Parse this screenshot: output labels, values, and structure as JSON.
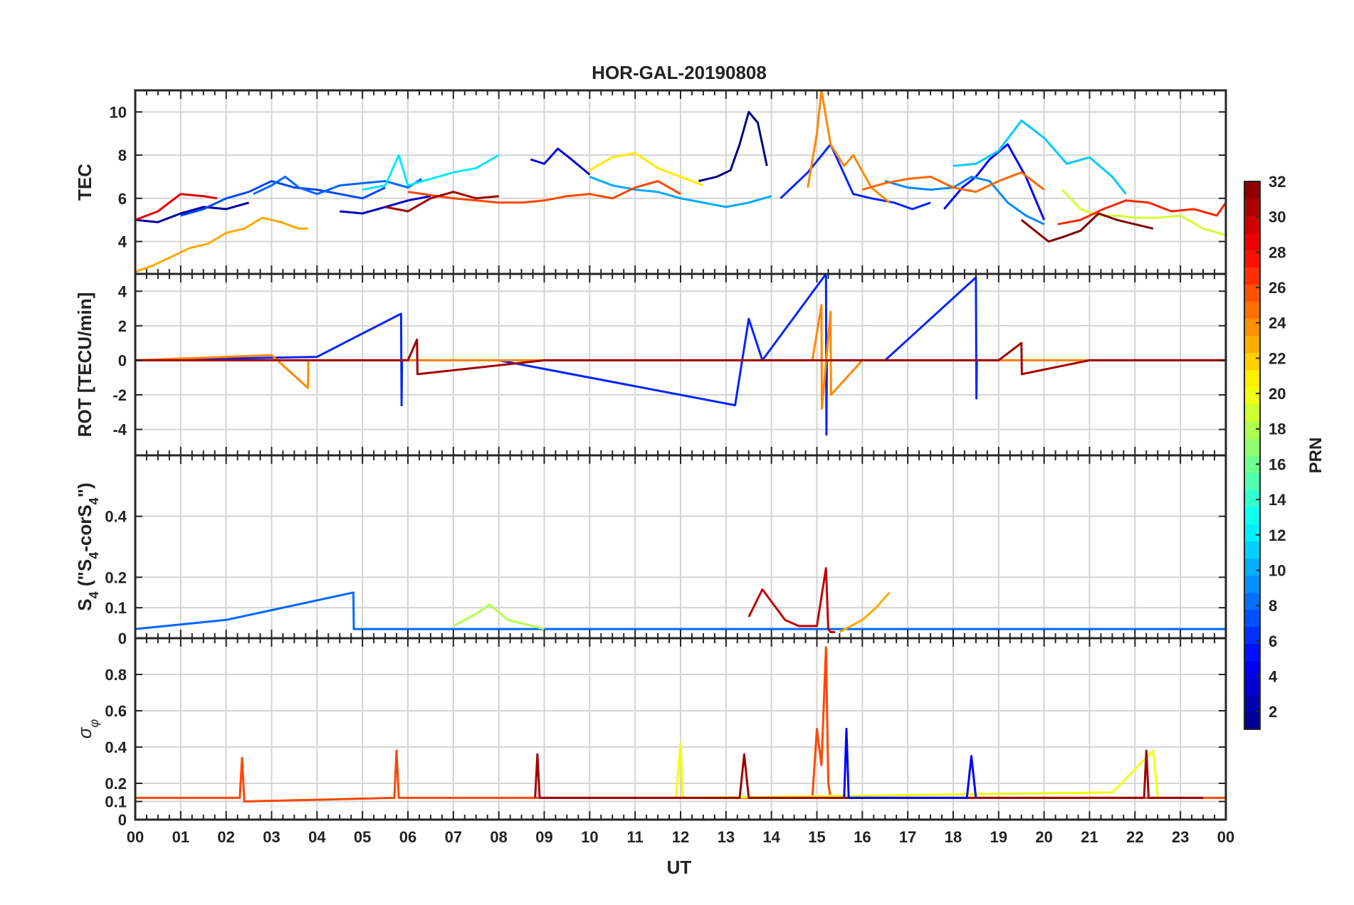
{
  "figure": {
    "title": "HOR-GAL-20190808",
    "xlabel": "UT",
    "x_ticks": [
      "00",
      "01",
      "02",
      "03",
      "04",
      "05",
      "06",
      "07",
      "08",
      "09",
      "10",
      "11",
      "12",
      "13",
      "14",
      "15",
      "16",
      "17",
      "18",
      "19",
      "20",
      "21",
      "22",
      "23",
      "00"
    ]
  },
  "colorbar": {
    "label": "PRN",
    "range": [
      1,
      32
    ],
    "colormap": "jet",
    "ticks": [
      "2",
      "4",
      "6",
      "8",
      "10",
      "12",
      "14",
      "16",
      "18",
      "20",
      "22",
      "24",
      "26",
      "28",
      "30",
      "32"
    ]
  },
  "panels": [
    {
      "id": "tec",
      "ylabel": "TEC",
      "ylim": [
        2.5,
        11
      ],
      "yticks": [
        4,
        6,
        8,
        10
      ],
      "ytick_labels": [
        "4",
        "6",
        "8",
        "10"
      ]
    },
    {
      "id": "rot",
      "ylabel": "ROT [TECU/min]",
      "ylim": [
        -5.5,
        5
      ],
      "yticks": [
        -4,
        -2,
        0,
        2,
        4
      ],
      "ytick_labels": [
        "-4",
        "-2",
        "0",
        "2",
        "4"
      ]
    },
    {
      "id": "s4",
      "ylabel_parts": [
        "S",
        "4",
        " (\"S",
        "4",
        "-corS",
        "4",
        "\")"
      ],
      "ylim": [
        0,
        0.6
      ],
      "yticks": [
        0,
        0.1,
        0.2,
        0.4
      ],
      "ytick_labels": [
        "0",
        "0.1",
        "0.2",
        "0.4"
      ]
    },
    {
      "id": "sigma",
      "ylabel_parts": [
        "σ",
        "φ"
      ],
      "ylim": [
        0,
        1
      ],
      "yticks": [
        0,
        0.1,
        0.2,
        0.4,
        0.6,
        0.8
      ],
      "ytick_labels": [
        "0",
        "0.1",
        "0.2",
        "0.4",
        "0.6",
        "0.8"
      ]
    }
  ],
  "chart_data": [
    {
      "type": "line",
      "title": "HOR-GAL-20190808",
      "panel": "tec",
      "xlabel": "UT",
      "ylabel": "TEC",
      "xlim": [
        0,
        24
      ],
      "ylim": [
        2.5,
        11
      ],
      "series": [
        {
          "prn": 1,
          "x": [
            12.4,
            12.8,
            13.1,
            13.3,
            13.5,
            13.7,
            13.9
          ],
          "y": [
            6.8,
            7.0,
            7.3,
            8.5,
            10.0,
            9.5,
            7.5
          ]
        },
        {
          "prn": 2,
          "x": [
            0.0,
            0.5,
            1.0,
            1.5,
            2.0,
            2.5
          ],
          "y": [
            5.0,
            4.9,
            5.3,
            5.6,
            5.5,
            5.8
          ]
        },
        {
          "prn": 3,
          "x": [
            4.5,
            5.0,
            5.5,
            6.0,
            6.5
          ],
          "y": [
            5.4,
            5.3,
            5.6,
            5.9,
            6.1
          ]
        },
        {
          "prn": 4,
          "x": [
            8.7,
            9.0,
            9.3,
            9.6,
            10.0
          ],
          "y": [
            7.8,
            7.6,
            8.3,
            7.8,
            7.1
          ]
        },
        {
          "prn": 5,
          "x": [
            17.8,
            18.2,
            18.5,
            18.8,
            19.2,
            19.6,
            20.0
          ],
          "y": [
            5.5,
            6.5,
            7.0,
            7.8,
            8.5,
            7.0,
            5.0
          ]
        },
        {
          "prn": 6,
          "x": [
            14.2,
            14.8,
            15.3,
            15.8,
            16.2,
            16.7,
            17.1,
            17.5
          ],
          "y": [
            6.0,
            7.2,
            8.5,
            6.2,
            6.0,
            5.8,
            5.5,
            5.8
          ]
        },
        {
          "prn": 7,
          "x": [
            1.0,
            1.5,
            2.0,
            2.5,
            3.0,
            3.5,
            4.0,
            4.5,
            5.0,
            5.5
          ],
          "y": [
            5.2,
            5.5,
            6.0,
            6.3,
            6.8,
            6.5,
            6.4,
            6.2,
            6.0,
            6.5
          ]
        },
        {
          "prn": 8,
          "x": [
            2.6,
            3.0,
            3.3,
            3.6,
            4.0,
            4.5,
            5.0,
            5.5,
            6.0,
            6.3
          ],
          "y": [
            6.2,
            6.6,
            7.0,
            6.5,
            6.2,
            6.6,
            6.7,
            6.8,
            6.5,
            6.9
          ]
        },
        {
          "prn": 9,
          "x": [
            16.5,
            17.0,
            17.5,
            18.0,
            18.4,
            18.8,
            19.2,
            19.6,
            20.0
          ],
          "y": [
            6.8,
            6.5,
            6.4,
            6.5,
            7.0,
            6.8,
            5.8,
            5.2,
            4.8
          ]
        },
        {
          "prn": 10,
          "x": [
            10.0,
            10.5,
            11.0,
            11.5,
            12.0,
            12.5,
            13.0,
            13.5,
            14.0
          ],
          "y": [
            7.0,
            6.6,
            6.4,
            6.3,
            6.0,
            5.8,
            5.6,
            5.8,
            6.1
          ]
        },
        {
          "prn": 11,
          "x": [
            18.0,
            18.5,
            19.0,
            19.5,
            20.0,
            20.5,
            21.0,
            21.5,
            21.8
          ],
          "y": [
            7.5,
            7.6,
            8.2,
            9.6,
            8.8,
            7.6,
            7.9,
            7.0,
            6.2
          ]
        },
        {
          "prn": 12,
          "x": [
            5.0,
            5.5,
            5.8,
            6.0,
            6.5,
            7.0,
            7.5,
            8.0
          ],
          "y": [
            6.4,
            6.6,
            8.0,
            6.6,
            6.9,
            7.2,
            7.4,
            8.0
          ]
        },
        {
          "prn": 19,
          "x": [
            20.4,
            20.8,
            21.2,
            21.6,
            22.0,
            22.5,
            23.0,
            23.5,
            24.0
          ],
          "y": [
            6.4,
            5.5,
            5.2,
            5.2,
            5.1,
            5.1,
            5.2,
            4.6,
            4.3
          ]
        },
        {
          "prn": 21,
          "x": [
            10.0,
            10.5,
            11.0,
            11.5,
            12.0,
            12.5
          ],
          "y": [
            7.3,
            7.9,
            8.1,
            7.4,
            7.0,
            6.6
          ]
        },
        {
          "prn": 23,
          "x": [
            0.0,
            0.4,
            0.8,
            1.2,
            1.6,
            2.0,
            2.4,
            2.8,
            3.2,
            3.6,
            3.8
          ],
          "y": [
            2.6,
            2.9,
            3.3,
            3.7,
            3.9,
            4.4,
            4.6,
            5.1,
            4.9,
            4.6,
            4.6
          ]
        },
        {
          "prn": 24,
          "x": [
            14.8,
            15.0,
            15.1,
            15.3,
            15.6,
            15.8,
            16.2,
            16.6
          ],
          "y": [
            6.5,
            9.0,
            11.0,
            8.5,
            7.5,
            8.0,
            6.5,
            5.8
          ]
        },
        {
          "prn": 25,
          "x": [
            16.0,
            16.5,
            17.0,
            17.5,
            18.0,
            18.5,
            19.0,
            19.5,
            20.0
          ],
          "y": [
            6.4,
            6.7,
            6.9,
            7.0,
            6.5,
            6.3,
            6.8,
            7.2,
            6.4
          ]
        },
        {
          "prn": 26,
          "x": [
            6.0,
            7.0,
            7.5,
            8.0,
            8.5,
            9.0,
            9.5,
            10.0,
            10.5,
            11.0,
            11.5,
            12.0
          ],
          "y": [
            6.3,
            6.0,
            5.9,
            5.8,
            5.8,
            5.9,
            6.1,
            6.2,
            6.0,
            6.5,
            6.8,
            6.2
          ]
        },
        {
          "prn": 27,
          "x": [
            20.3,
            20.8,
            21.3,
            21.8,
            22.3,
            22.8,
            23.3,
            23.8,
            24.0
          ],
          "y": [
            4.8,
            5.0,
            5.5,
            5.9,
            5.8,
            5.4,
            5.5,
            5.2,
            5.8
          ]
        },
        {
          "prn": 29,
          "x": [
            0.0,
            0.5,
            1.0,
            1.5,
            1.8
          ],
          "y": [
            5.0,
            5.4,
            6.2,
            6.1,
            6.0
          ]
        },
        {
          "prn": 31,
          "x": [
            5.5,
            6.0,
            6.5,
            7.0,
            7.5,
            8.0
          ],
          "y": [
            5.6,
            5.4,
            6.0,
            6.3,
            6.0,
            6.1
          ]
        },
        {
          "prn": 32,
          "x": [
            19.5,
            19.8,
            20.1,
            20.4,
            20.8,
            21.2,
            21.6,
            22.0,
            22.4
          ],
          "y": [
            5.0,
            4.5,
            4.0,
            4.2,
            4.5,
            5.3,
            5.0,
            4.8,
            4.6
          ]
        }
      ]
    },
    {
      "type": "line",
      "panel": "rot",
      "xlabel": "UT",
      "ylabel": "ROT [TECU/min]",
      "xlim": [
        0,
        24
      ],
      "ylim": [
        -5.5,
        5
      ],
      "series": [
        {
          "prn": 6,
          "x": [
            0,
            4,
            5.85,
            5.86,
            5.87,
            8,
            13.2,
            13.5,
            13.8,
            15.2,
            15.21,
            15.22,
            16.5,
            18.5,
            18.51,
            18.52,
            19.5,
            24
          ],
          "y": [
            0,
            0.2,
            2.7,
            -2.6,
            0,
            0,
            -2.6,
            2.4,
            0,
            5.0,
            -4.3,
            0,
            0,
            4.8,
            -2.2,
            0,
            0,
            0
          ]
        },
        {
          "prn": 24,
          "x": [
            0,
            3,
            3.8,
            3.81,
            6,
            14.9,
            15.1,
            15.11,
            15.3,
            15.31,
            16,
            24
          ],
          "y": [
            0,
            0.3,
            -1.6,
            0,
            0,
            0,
            3.2,
            -2.8,
            2.8,
            -2.0,
            0,
            0
          ]
        },
        {
          "prn": 31,
          "x": [
            0,
            6,
            6.2,
            6.21,
            9,
            17,
            19,
            19.5,
            19.51,
            21,
            24
          ],
          "y": [
            0,
            0,
            1.2,
            -0.8,
            0,
            0,
            0,
            1.0,
            -0.8,
            0,
            0
          ]
        }
      ]
    },
    {
      "type": "line",
      "panel": "s4",
      "xlabel": "UT",
      "ylabel": "S4 (\"S4-corS4\")",
      "xlim": [
        0,
        24
      ],
      "ylim": [
        0,
        0.6
      ],
      "series": [
        {
          "prn": 8,
          "x": [
            0,
            2,
            4.8,
            4.81,
            4.82,
            8,
            24
          ],
          "y": [
            0.03,
            0.06,
            0.15,
            0.03,
            0.03,
            0.03,
            0.03
          ]
        },
        {
          "prn": 18,
          "x": [
            7,
            7.5,
            7.8,
            8.2,
            9
          ],
          "y": [
            0.04,
            0.08,
            0.11,
            0.06,
            0.03
          ]
        },
        {
          "prn": 30,
          "x": [
            13.5,
            13.8,
            14,
            14.3,
            14.6,
            15,
            15.2,
            15.25,
            15.3,
            15.4
          ],
          "y": [
            0.07,
            0.16,
            0.12,
            0.06,
            0.04,
            0.04,
            0.23,
            0.03,
            0.02,
            0.02
          ]
        },
        {
          "prn": 23,
          "x": [
            15.5,
            16,
            16.3,
            16.6
          ],
          "y": [
            0.02,
            0.06,
            0.1,
            0.15
          ]
        }
      ]
    },
    {
      "type": "line",
      "panel": "sigma",
      "xlabel": "UT",
      "ylabel": "σφ",
      "xlim": [
        0,
        24
      ],
      "ylim": [
        0,
        1
      ],
      "series": [
        {
          "prn": 26,
          "x": [
            0,
            2.3,
            2.35,
            2.4,
            5.7,
            5.75,
            5.8,
            14.9,
            15.0,
            15.1,
            15.2,
            15.25,
            15.3,
            16,
            24
          ],
          "y": [
            0.12,
            0.12,
            0.34,
            0.1,
            0.12,
            0.38,
            0.12,
            0.12,
            0.5,
            0.3,
            0.95,
            0.2,
            0.12,
            0.12,
            0.12
          ]
        },
        {
          "prn": 20,
          "x": [
            11.9,
            12.0,
            12.05,
            12.1,
            21.5,
            22.4,
            22.5
          ],
          "y": [
            0.12,
            0.42,
            0.12,
            0.12,
            0.15,
            0.38,
            0.12
          ]
        },
        {
          "prn": 31,
          "x": [
            8.8,
            8.85,
            8.9,
            13.3,
            13.4,
            13.5,
            22.2,
            22.25,
            22.3,
            23.5
          ],
          "y": [
            0.12,
            0.36,
            0.12,
            0.12,
            0.36,
            0.12,
            0.12,
            0.38,
            0.12,
            0.12
          ]
        },
        {
          "prn": 5,
          "x": [
            15.6,
            15.65,
            15.7,
            18.3,
            18.4,
            18.5
          ],
          "y": [
            0.12,
            0.5,
            0.12,
            0.12,
            0.35,
            0.12
          ]
        }
      ]
    }
  ]
}
